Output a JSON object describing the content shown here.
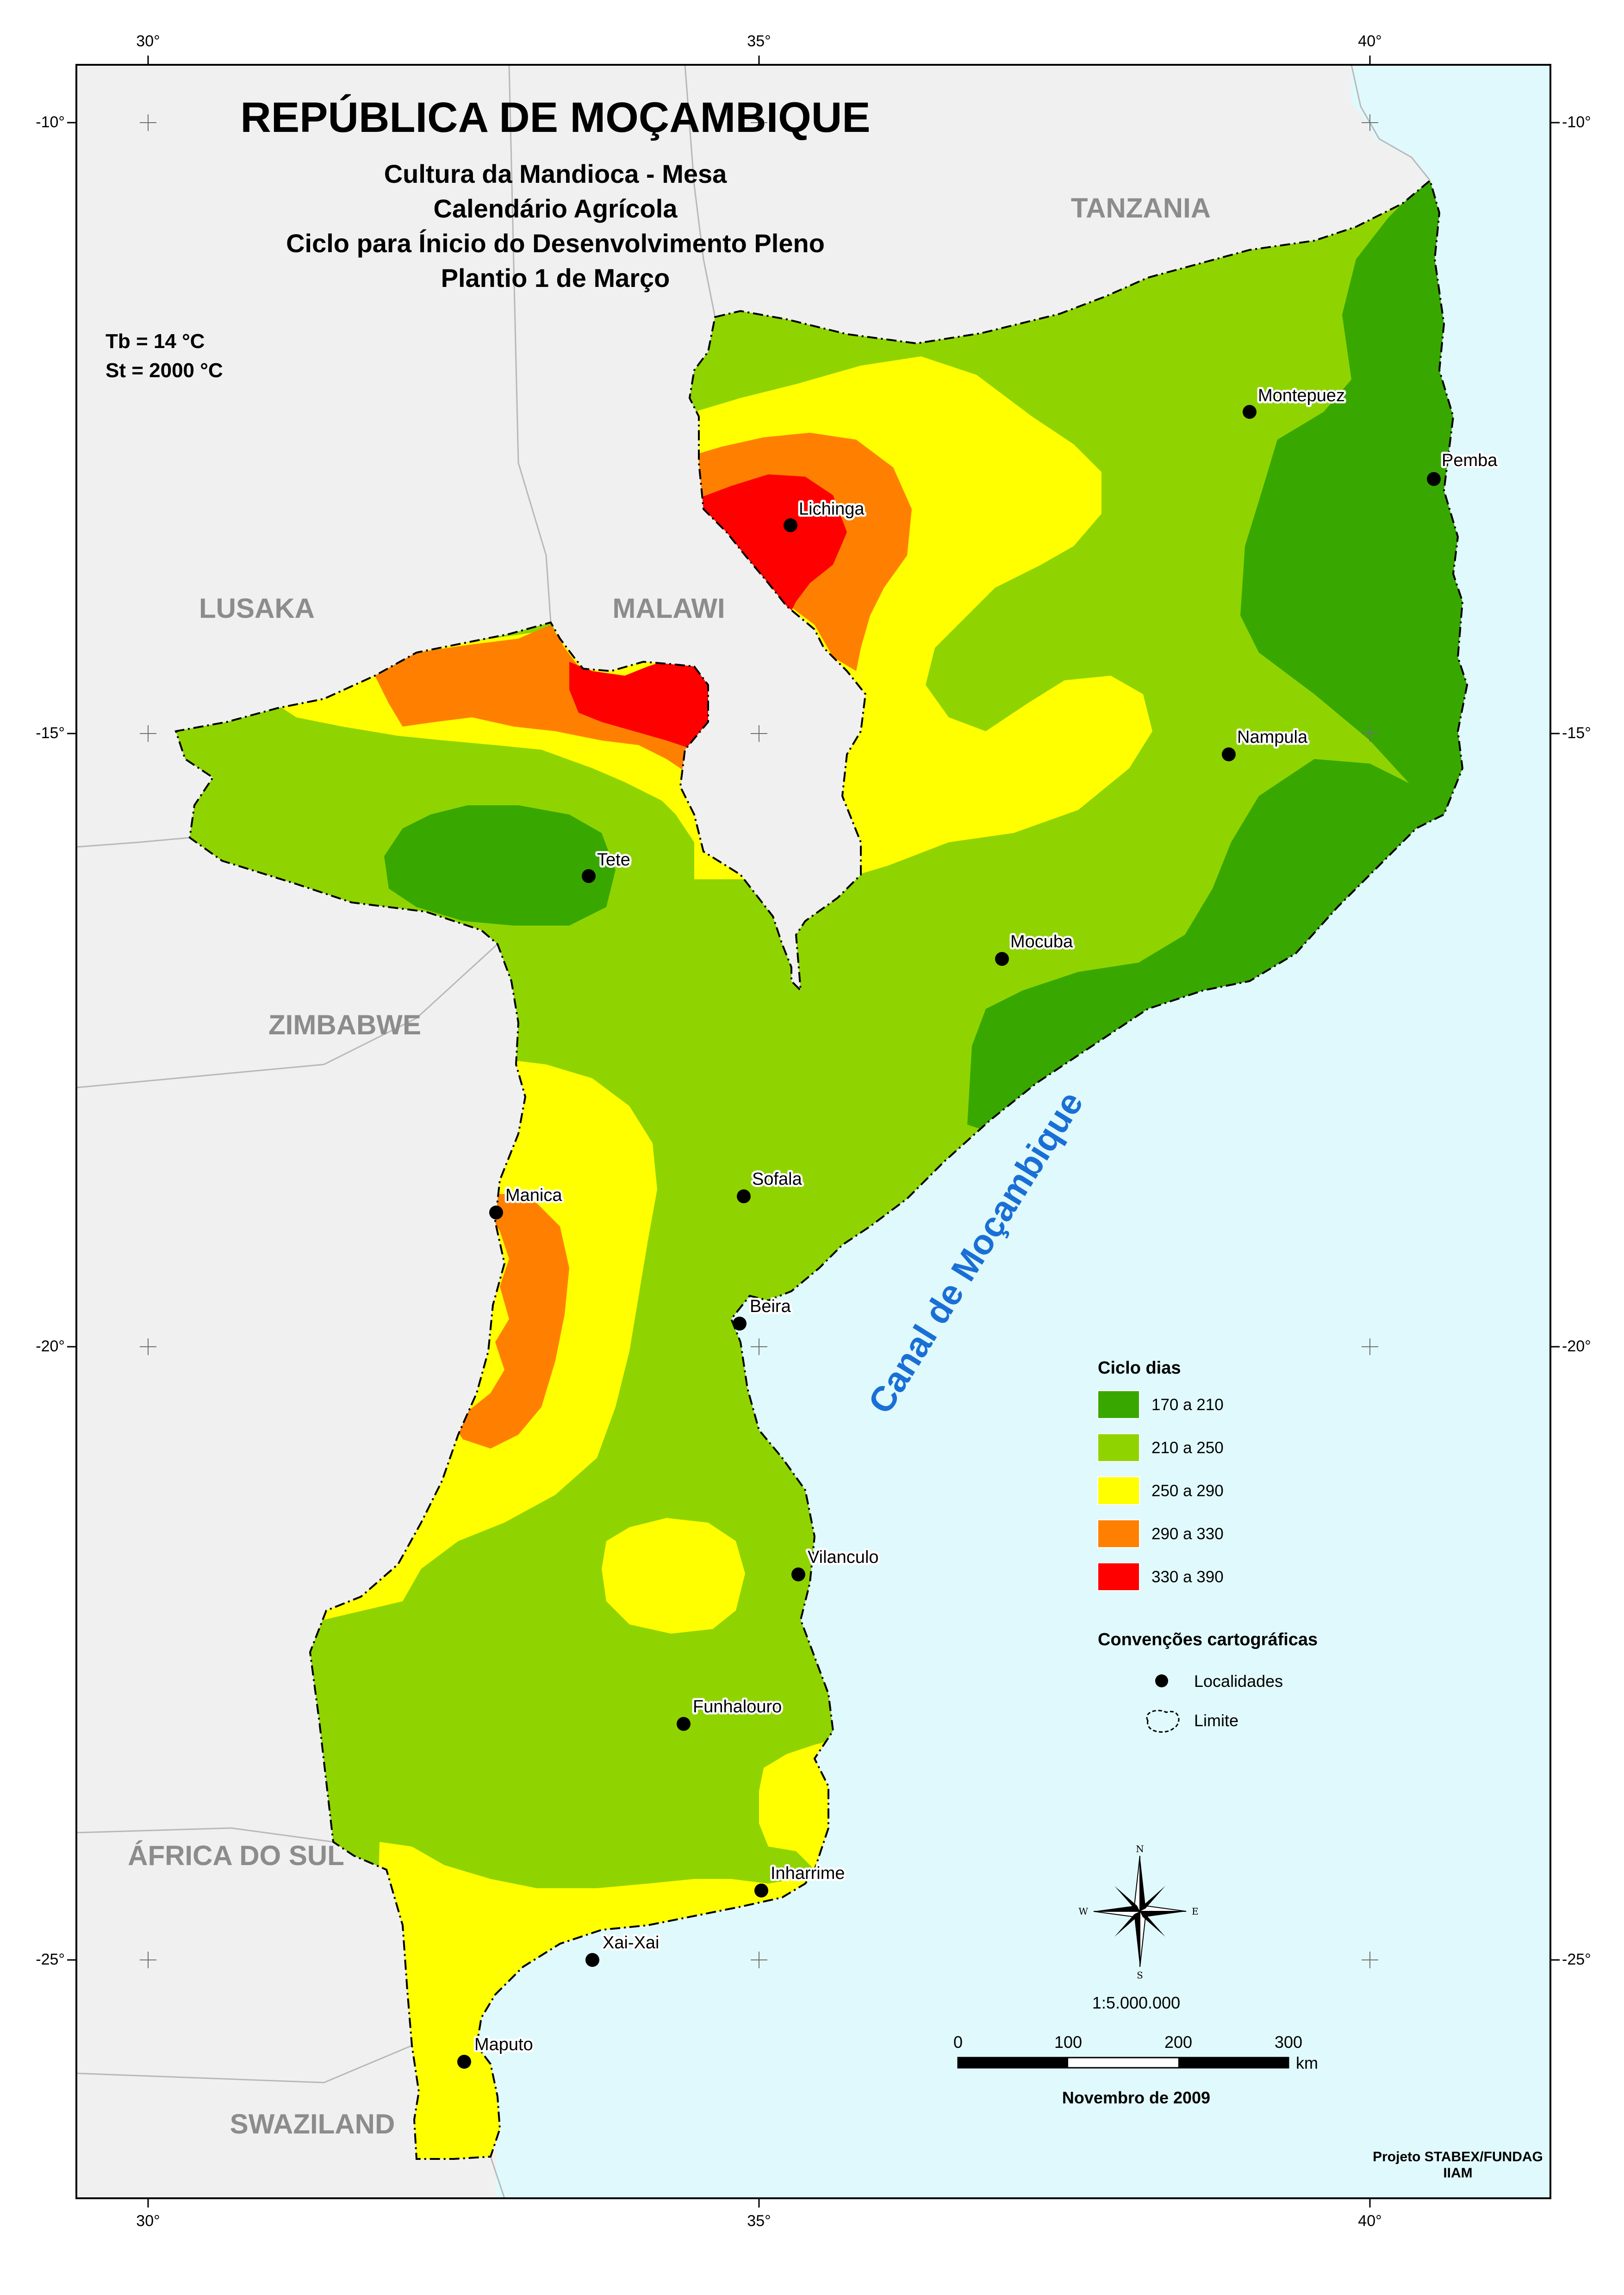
{
  "map_title": "REPÚBLICA DE MOÇAMBIQUE",
  "subtitle_lines": [
    "Cultura da Mandioca - Mesa",
    "Calendário Agrícola",
    "Ciclo para Ínicio do Desenvolvimento Pleno",
    "Plantio 1 de Março"
  ],
  "parameters": [
    "Tb = 14 °C",
    "St =  2000 °C"
  ],
  "axes": {
    "top": [
      "30°",
      "35°",
      "40°"
    ],
    "bottom": [
      "30°",
      "35°",
      "40°"
    ],
    "left": [
      "-10°",
      "-15°",
      "-20°",
      "-25°"
    ],
    "right": [
      "-10°",
      "-15°",
      "-20°",
      "-25°"
    ]
  },
  "countries": [
    {
      "id": "tanzania",
      "label": "TANZANIA"
    },
    {
      "id": "lusaka",
      "label": "LUSAKA"
    },
    {
      "id": "malawi",
      "label": "MALAWI"
    },
    {
      "id": "zimbabwe",
      "label": "ZIMBABWE"
    },
    {
      "id": "africa-do-sul",
      "label": "ÁFRICA DO SUL"
    },
    {
      "id": "swaziland",
      "label": "SWAZILAND"
    }
  ],
  "sea_label": "Canal de Moçambique",
  "localities": [
    {
      "id": "montepuez",
      "name": "Montepuez"
    },
    {
      "id": "pemba",
      "name": "Pemba"
    },
    {
      "id": "lichinga",
      "name": "Lichinga"
    },
    {
      "id": "nampula",
      "name": "Nampula"
    },
    {
      "id": "tete",
      "name": "Tete"
    },
    {
      "id": "mocuba",
      "name": "Mocuba"
    },
    {
      "id": "sofala",
      "name": "Sofala"
    },
    {
      "id": "manica",
      "name": "Manica"
    },
    {
      "id": "beira",
      "name": "Beira"
    },
    {
      "id": "vilanculo",
      "name": "Vilanculo"
    },
    {
      "id": "funhalouro",
      "name": "Funhalouro"
    },
    {
      "id": "inharrime",
      "name": "Inharrime"
    },
    {
      "id": "xai-xai",
      "name": "Xai-Xai"
    },
    {
      "id": "maputo",
      "name": "Maputo"
    }
  ],
  "legend": {
    "title": "Ciclo dias",
    "classes": [
      {
        "label": "170 a 210",
        "color": "#38a800"
      },
      {
        "label": "210 a 250",
        "color": "#8fd400"
      },
      {
        "label": "250 a 290",
        "color": "#ffff00"
      },
      {
        "label": "290 a 330",
        "color": "#ff8000"
      },
      {
        "label": "330 a 390",
        "color": "#ff0000"
      }
    ],
    "conventions_title": "Convenções cartográficas",
    "conventions": [
      "Localidades",
      "Limite"
    ]
  },
  "compass": {
    "n": "N",
    "s": "S",
    "e": "E",
    "w": "W"
  },
  "scale": {
    "ratio": "1:5.000.000",
    "ticks": [
      "0",
      "100",
      "200",
      "300"
    ],
    "unit": "km"
  },
  "date": "Novembro de 2009",
  "credits": [
    "Projeto STABEX/FUNDAG",
    "IIAM"
  ],
  "colors": {
    "sea": "#e0f9fc",
    "land_outside": "#f0f0f0",
    "frame": "#000000"
  }
}
